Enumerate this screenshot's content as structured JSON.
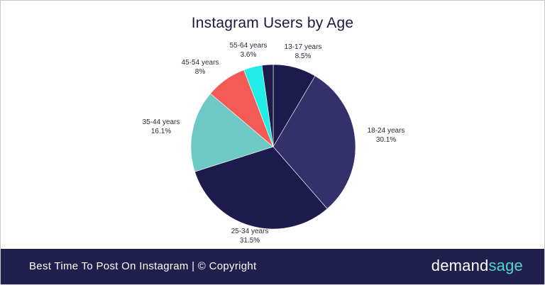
{
  "chart_data": {
    "type": "pie",
    "title": "Instagram Users by Age",
    "slices": [
      {
        "label": "13-17 years",
        "value": 8.5,
        "value_label": "8.5%",
        "color": "#1d1b4c"
      },
      {
        "label": "18-24 years",
        "value": 30.1,
        "value_label": "30.1%",
        "color": "#33306b"
      },
      {
        "label": "25-34 years",
        "value": 31.5,
        "value_label": "31.5%",
        "color": "#1d1b4c"
      },
      {
        "label": "35-44 years",
        "value": 16.1,
        "value_label": "16.1%",
        "color": "#6ec9c5"
      },
      {
        "label": "45-54 years",
        "value": 8,
        "value_label": "8%",
        "color": "#f45b57"
      },
      {
        "label": "55-64 years",
        "value": 3.6,
        "value_label": "3.6%",
        "color": "#20eee6"
      },
      {
        "label": "",
        "value": 2.2,
        "value_label": "",
        "color": "#1d1b4c"
      }
    ],
    "legend": "none"
  },
  "footer": {
    "text": "Best Time To Post On Instagram | © Copyright",
    "brand_part1": "demand",
    "brand_part2": "sage"
  },
  "colors": {
    "footer_bg": "#21204d",
    "brand_accent": "#4fd6c9"
  }
}
